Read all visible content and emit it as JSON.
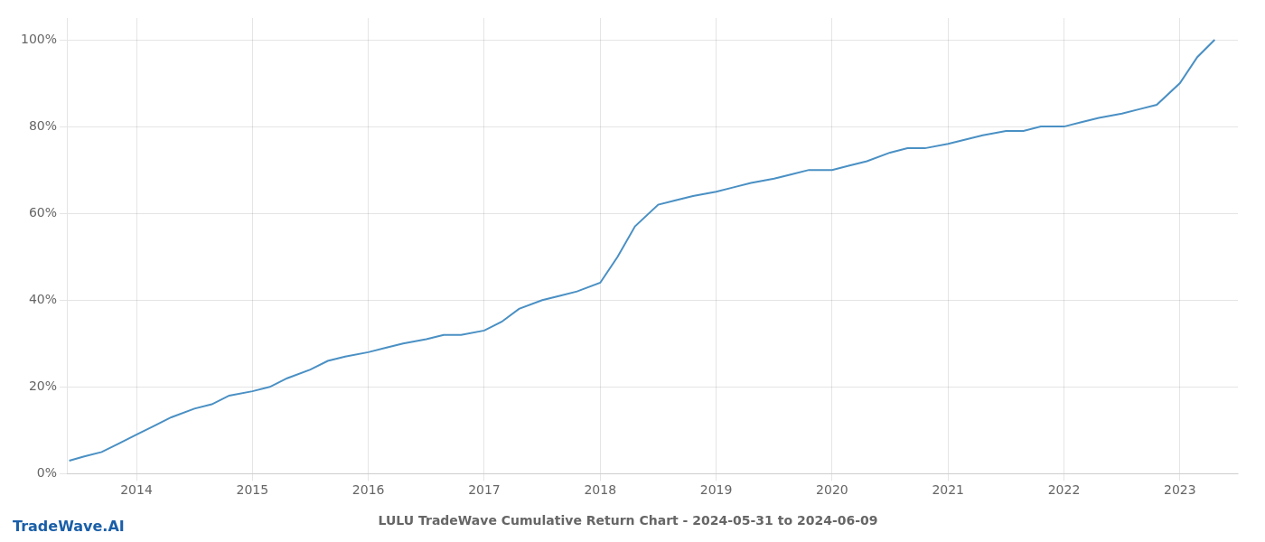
{
  "chart_data": {
    "type": "line",
    "title": "LULU TradeWave Cumulative Return Chart - 2024-05-31 to 2024-06-09",
    "annotations": [
      {
        "text": "TradeWave.AI",
        "color": "#1a5fa8"
      }
    ],
    "x": [
      2013.42,
      2013.55,
      2013.7,
      2013.85,
      2014.0,
      2014.15,
      2014.3,
      2014.5,
      2014.65,
      2014.8,
      2015.0,
      2015.15,
      2015.3,
      2015.5,
      2015.65,
      2015.8,
      2016.0,
      2016.15,
      2016.3,
      2016.5,
      2016.65,
      2016.8,
      2017.0,
      2017.15,
      2017.3,
      2017.5,
      2017.65,
      2017.8,
      2018.0,
      2018.15,
      2018.3,
      2018.5,
      2018.65,
      2018.8,
      2019.0,
      2019.15,
      2019.3,
      2019.5,
      2019.65,
      2019.8,
      2020.0,
      2020.15,
      2020.3,
      2020.5,
      2020.65,
      2020.8,
      2021.0,
      2021.15,
      2021.3,
      2021.5,
      2021.65,
      2021.8,
      2022.0,
      2022.15,
      2022.3,
      2022.5,
      2022.65,
      2022.8,
      2023.0,
      2023.15,
      2023.3
    ],
    "values": [
      3,
      4,
      5,
      7,
      9,
      11,
      13,
      15,
      16,
      18,
      19,
      20,
      22,
      24,
      26,
      27,
      28,
      29,
      30,
      31,
      32,
      32,
      33,
      35,
      38,
      40,
      41,
      42,
      44,
      50,
      57,
      62,
      63,
      64,
      65,
      66,
      67,
      68,
      69,
      70,
      70,
      71,
      72,
      74,
      75,
      75,
      76,
      77,
      78,
      79,
      79,
      80,
      80,
      81,
      82,
      83,
      84,
      85,
      90,
      96,
      100
    ],
    "color": "#4a90c4",
    "xlim": [
      2013.4,
      2023.5
    ],
    "xticks": [
      2014,
      2015,
      2016,
      2017,
      2018,
      2019,
      2020,
      2021,
      2022,
      2023
    ],
    "ylim": [
      0,
      105
    ],
    "yticks": [
      {
        "value": 0,
        "label": "0%"
      },
      {
        "value": 20,
        "label": "20%"
      },
      {
        "value": 40,
        "label": "40%"
      },
      {
        "value": 60,
        "label": "60%"
      },
      {
        "value": 80,
        "label": "80%"
      },
      {
        "value": 100,
        "label": "100%"
      }
    ],
    "grid": true
  }
}
